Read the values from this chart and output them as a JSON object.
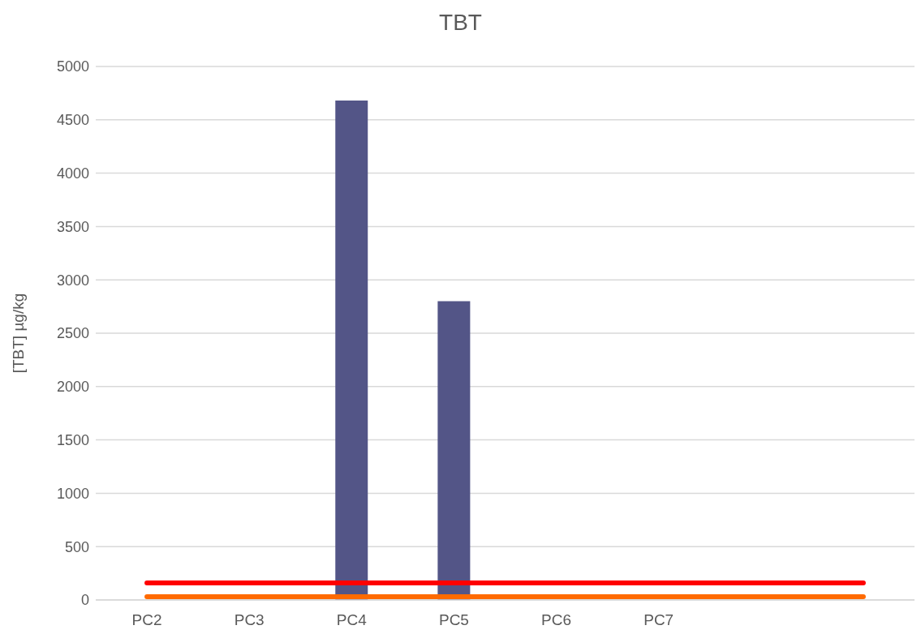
{
  "chart_data": {
    "type": "bar",
    "title": "TBT",
    "ylabel": "[TBT] µg/kg",
    "categories": [
      "PC2",
      "PC3",
      "PC4",
      "PC5",
      "PC6",
      "PC7",
      null,
      null
    ],
    "series": [
      {
        "color": "#535587",
        "values": [
          null,
          null,
          4680,
          2800,
          null,
          null,
          null,
          null
        ]
      },
      {
        "type": "line",
        "color": "#ff0000",
        "values": [
          160,
          160,
          160,
          160,
          160,
          160,
          160,
          160
        ]
      },
      {
        "type": "line",
        "color": "#ff6a00",
        "values": [
          30,
          30,
          30,
          30,
          30,
          30,
          30,
          30
        ]
      }
    ],
    "ylim": [
      0,
      5000
    ],
    "yticks": [
      0,
      500,
      1000,
      1500,
      2000,
      2500,
      3000,
      3500,
      4000,
      4500,
      5000
    ],
    "grid": "y",
    "legend": false
  }
}
